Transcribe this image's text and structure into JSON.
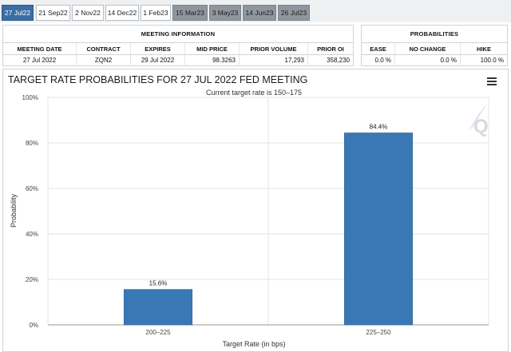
{
  "tabs": [
    {
      "label": "27 Jul22",
      "state": "active"
    },
    {
      "label": "21 Sep22",
      "state": "normal"
    },
    {
      "label": "2 Nov22",
      "state": "normal"
    },
    {
      "label": "14 Dec22",
      "state": "normal"
    },
    {
      "label": "1 Feb23",
      "state": "normal"
    },
    {
      "label": "15 Mar23",
      "state": "gray"
    },
    {
      "label": "3 May23",
      "state": "gray"
    },
    {
      "label": "14 Jun23",
      "state": "gray"
    },
    {
      "label": "26 Jul23",
      "state": "gray"
    }
  ],
  "meeting_info": {
    "title": "MEETING INFORMATION",
    "headers": [
      "MEETING DATE",
      "CONTRACT",
      "EXPIRES",
      "MID PRICE",
      "PRIOR VOLUME",
      "PRIOR OI"
    ],
    "values": [
      "27 Jul 2022",
      "ZQN2",
      "29 Jul 2022",
      "98.3263",
      "17,293",
      "358,230"
    ]
  },
  "probabilities": {
    "title": "PROBABILITIES",
    "headers": [
      "EASE",
      "NO CHANGE",
      "HIKE"
    ],
    "values": [
      "0.0 %",
      "0.0 %",
      "100.0 %"
    ]
  },
  "chart_data": {
    "type": "bar",
    "title": "TARGET RATE PROBABILITIES FOR 27 JUL 2022 FED MEETING",
    "subtitle": "Current target rate is 150–175",
    "xlabel": "Target Rate (in bps)",
    "ylabel": "Probability",
    "categories": [
      "200–225",
      "225–250"
    ],
    "values": [
      15.6,
      84.4
    ],
    "data_labels": [
      "15.6%",
      "84.4%"
    ],
    "ylim": [
      0,
      100
    ],
    "yticks": [
      "0%",
      "20%",
      "40%",
      "60%",
      "80%",
      "100%"
    ],
    "grid": true,
    "bar_color": "#3a78b5"
  },
  "colors": {
    "accent": "#3a6ea5",
    "future_tab": "#8f969d"
  }
}
